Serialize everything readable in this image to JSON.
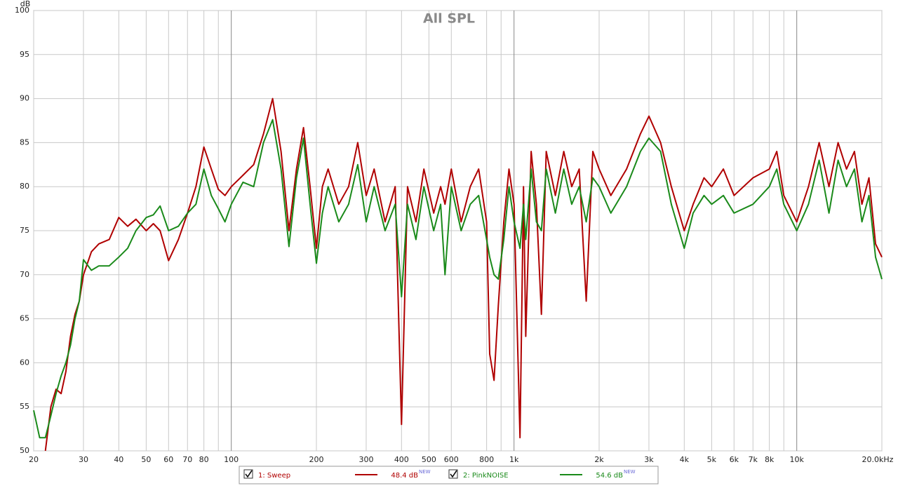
{
  "chart_data": {
    "type": "line",
    "title": "All SPL",
    "y_label": "dB",
    "log_x": true,
    "grid": true,
    "xlim": [
      20,
      20000
    ],
    "ylim": [
      50,
      100
    ],
    "xticks": [
      20,
      30,
      40,
      50,
      60,
      70,
      80,
      100,
      200,
      300,
      400,
      500,
      600,
      800,
      {
        "value": 1000,
        "label": "1k"
      },
      {
        "value": 2000,
        "label": "2k"
      },
      {
        "value": 3000,
        "label": "3k"
      },
      {
        "value": 4000,
        "label": "4k"
      },
      {
        "value": 5000,
        "label": "5k"
      },
      {
        "value": 6000,
        "label": "6k"
      },
      {
        "value": 7000,
        "label": "7k"
      },
      {
        "value": 8000,
        "label": "8k"
      },
      {
        "value": 10000,
        "label": "10k"
      },
      {
        "value": 20000,
        "label": "20.0kHz"
      }
    ],
    "xgrid_unlabeled": [
      90,
      900,
      9000
    ],
    "yticks": [
      50,
      55,
      60,
      65,
      70,
      75,
      80,
      85,
      90,
      95,
      100
    ],
    "x": [
      20,
      21,
      22,
      23,
      24,
      25,
      26,
      27,
      28,
      29,
      30,
      32,
      34,
      37,
      40,
      43,
      46,
      50,
      53,
      56,
      60,
      65,
      70,
      75,
      80,
      85,
      90,
      95,
      100,
      110,
      120,
      130,
      140,
      150,
      160,
      170,
      180,
      190,
      200,
      210,
      220,
      240,
      260,
      280,
      300,
      320,
      350,
      380,
      400,
      420,
      450,
      480,
      520,
      550,
      570,
      600,
      650,
      700,
      750,
      800,
      820,
      850,
      880,
      920,
      960,
      1000,
      1050,
      1080,
      1100,
      1150,
      1200,
      1250,
      1300,
      1400,
      1500,
      1600,
      1700,
      1800,
      1900,
      2000,
      2200,
      2500,
      2800,
      3000,
      3300,
      3600,
      4000,
      4300,
      4700,
      5000,
      5500,
      6000,
      7000,
      8000,
      8500,
      9000,
      10000,
      11000,
      12000,
      13000,
      14000,
      15000,
      16000,
      17000,
      18000,
      19000,
      20000
    ],
    "series": [
      {
        "name": "1: Sweep",
        "color": "#b00000",
        "legend_value": "48.4 dB",
        "legend_badge": "NEW",
        "values": [
          null,
          null,
          50,
          55,
          57,
          56.5,
          59,
          63,
          65.5,
          67,
          70,
          72.6,
          73.5,
          74,
          76.5,
          75.5,
          76.3,
          75,
          75.8,
          75,
          71.6,
          74,
          77,
          80,
          84.5,
          82,
          79.7,
          79,
          80,
          81.3,
          82.5,
          86,
          90,
          84,
          75,
          82,
          86.7,
          80,
          73,
          80,
          82,
          78,
          80,
          85,
          79,
          82,
          76,
          80,
          53,
          80,
          76,
          82,
          77,
          80,
          78,
          82,
          76,
          80,
          82,
          76,
          61,
          58,
          66.5,
          76,
          82,
          78,
          51.5,
          80,
          63,
          84,
          78,
          65.5,
          84,
          79,
          84,
          80,
          82,
          67,
          84,
          82,
          79,
          82,
          86,
          88,
          85,
          80,
          75,
          78,
          81,
          80,
          82,
          79,
          81,
          82,
          84,
          79,
          76,
          80,
          85,
          80,
          85,
          82,
          84,
          78,
          81,
          73.5,
          72
        ]
      },
      {
        "name": "2: PinkNOISE",
        "color": "#1a8a1a",
        "legend_value": "54.6 dB",
        "legend_badge": "NEW",
        "values": [
          54.6,
          51.5,
          51.5,
          54,
          56.5,
          58.5,
          60,
          62,
          65,
          67,
          71.7,
          70.5,
          71,
          71,
          72,
          73,
          75,
          76.5,
          76.8,
          77.8,
          75,
          75.5,
          77,
          78,
          82,
          79,
          77.5,
          76,
          78,
          80.5,
          80,
          85,
          87.6,
          82,
          73.2,
          81,
          85.5,
          78,
          71.3,
          77,
          80,
          76,
          78,
          82.5,
          76,
          80,
          75,
          78,
          67.5,
          78,
          74,
          80,
          75,
          78,
          70,
          80,
          75,
          78,
          79,
          74,
          72,
          70,
          69.5,
          74,
          80,
          76,
          73,
          78,
          74,
          82,
          76,
          75,
          82,
          77,
          82,
          78,
          80,
          76,
          81,
          80,
          77,
          80,
          84,
          85.5,
          84,
          78,
          73,
          77,
          79,
          78,
          79,
          77,
          78,
          80,
          82,
          78,
          75,
          78,
          83,
          77,
          83,
          80,
          82,
          76,
          79,
          72,
          69.5
        ]
      }
    ]
  }
}
